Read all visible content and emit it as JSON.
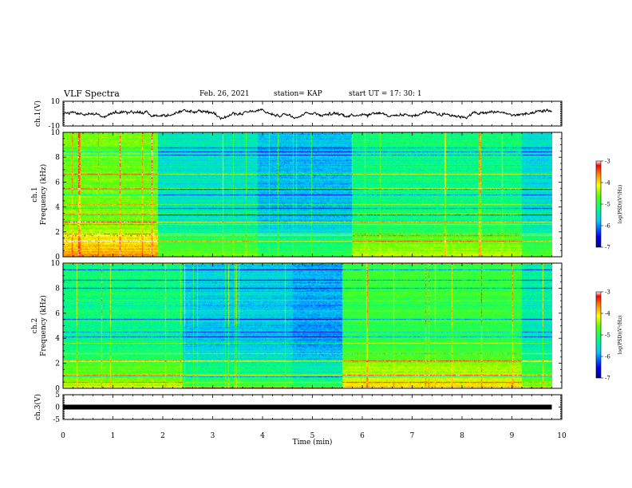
{
  "header": {
    "title": "VLF Spectra",
    "date": "Feb. 26, 2021",
    "station": "station= KAP",
    "start": "start  UT  =   17: 30: 1"
  },
  "chart_data": [
    {
      "type": "line",
      "ylabel": "ch.1(V)",
      "ylim": [
        -10,
        10
      ],
      "yticks": [
        "10",
        "-10"
      ],
      "xlim": [
        0,
        10
      ],
      "trace": {
        "mean": 0,
        "amplitude": 2.2,
        "end": 9.8,
        "color": "#000000"
      }
    },
    {
      "type": "heatmap",
      "ylabel": [
        "ch.1",
        "Frequency  (kHz)"
      ],
      "ylim": [
        0,
        10
      ],
      "yticks": [
        "0",
        "2",
        "4",
        "6",
        "8",
        "10"
      ],
      "xlim": [
        0,
        10
      ],
      "data_end": 9.8,
      "colorbar": {
        "label": "log(PSD)(V²/Hz)",
        "range": [
          -7,
          -3
        ],
        "ticks": [
          "-3",
          "-4",
          "-5",
          "-6",
          "-7"
        ]
      },
      "segments": [
        {
          "x0": 0,
          "x1": 1.9,
          "level": -4.6
        },
        {
          "x0": 1.9,
          "x1": 3.9,
          "level": -5.5
        },
        {
          "x0": 3.9,
          "x1": 5.8,
          "level": -5.8
        },
        {
          "x0": 5.8,
          "x1": 9.2,
          "level": -5.2
        },
        {
          "x0": 9.2,
          "x1": 9.8,
          "level": -5.6
        }
      ]
    },
    {
      "type": "heatmap",
      "ylabel": [
        "ch.2",
        "Frequency  (kHz)"
      ],
      "ylim": [
        0,
        10
      ],
      "yticks": [
        "0",
        "2",
        "4",
        "6",
        "8",
        "10"
      ],
      "xlim": [
        0,
        10
      ],
      "data_end": 9.8,
      "colorbar": {
        "label": "log(PSD)(V²/Hz)",
        "range": [
          -7,
          -3
        ],
        "ticks": [
          "-3",
          "-4",
          "-5",
          "-6",
          "-7"
        ]
      },
      "segments": [
        {
          "x0": 0,
          "x1": 2.4,
          "level": -5.2
        },
        {
          "x0": 2.4,
          "x1": 4.6,
          "level": -5.7
        },
        {
          "x0": 4.6,
          "x1": 5.6,
          "level": -5.9
        },
        {
          "x0": 5.6,
          "x1": 9.2,
          "level": -4.9
        },
        {
          "x0": 9.2,
          "x1": 9.8,
          "level": -5.4
        }
      ]
    },
    {
      "type": "line",
      "ylabel": "ch.3(V)",
      "ylim": [
        -5,
        5
      ],
      "yticks": [
        "5",
        "0",
        "-5"
      ],
      "xlim": [
        0,
        10
      ],
      "xlabel": "Time  (min)",
      "xticks": [
        "0",
        "1",
        "2",
        "3",
        "4",
        "5",
        "6",
        "7",
        "8",
        "9",
        "10"
      ],
      "trace": {
        "mean": 0,
        "amplitude": 0.35,
        "end": 9.8,
        "color": "#000000"
      }
    }
  ]
}
